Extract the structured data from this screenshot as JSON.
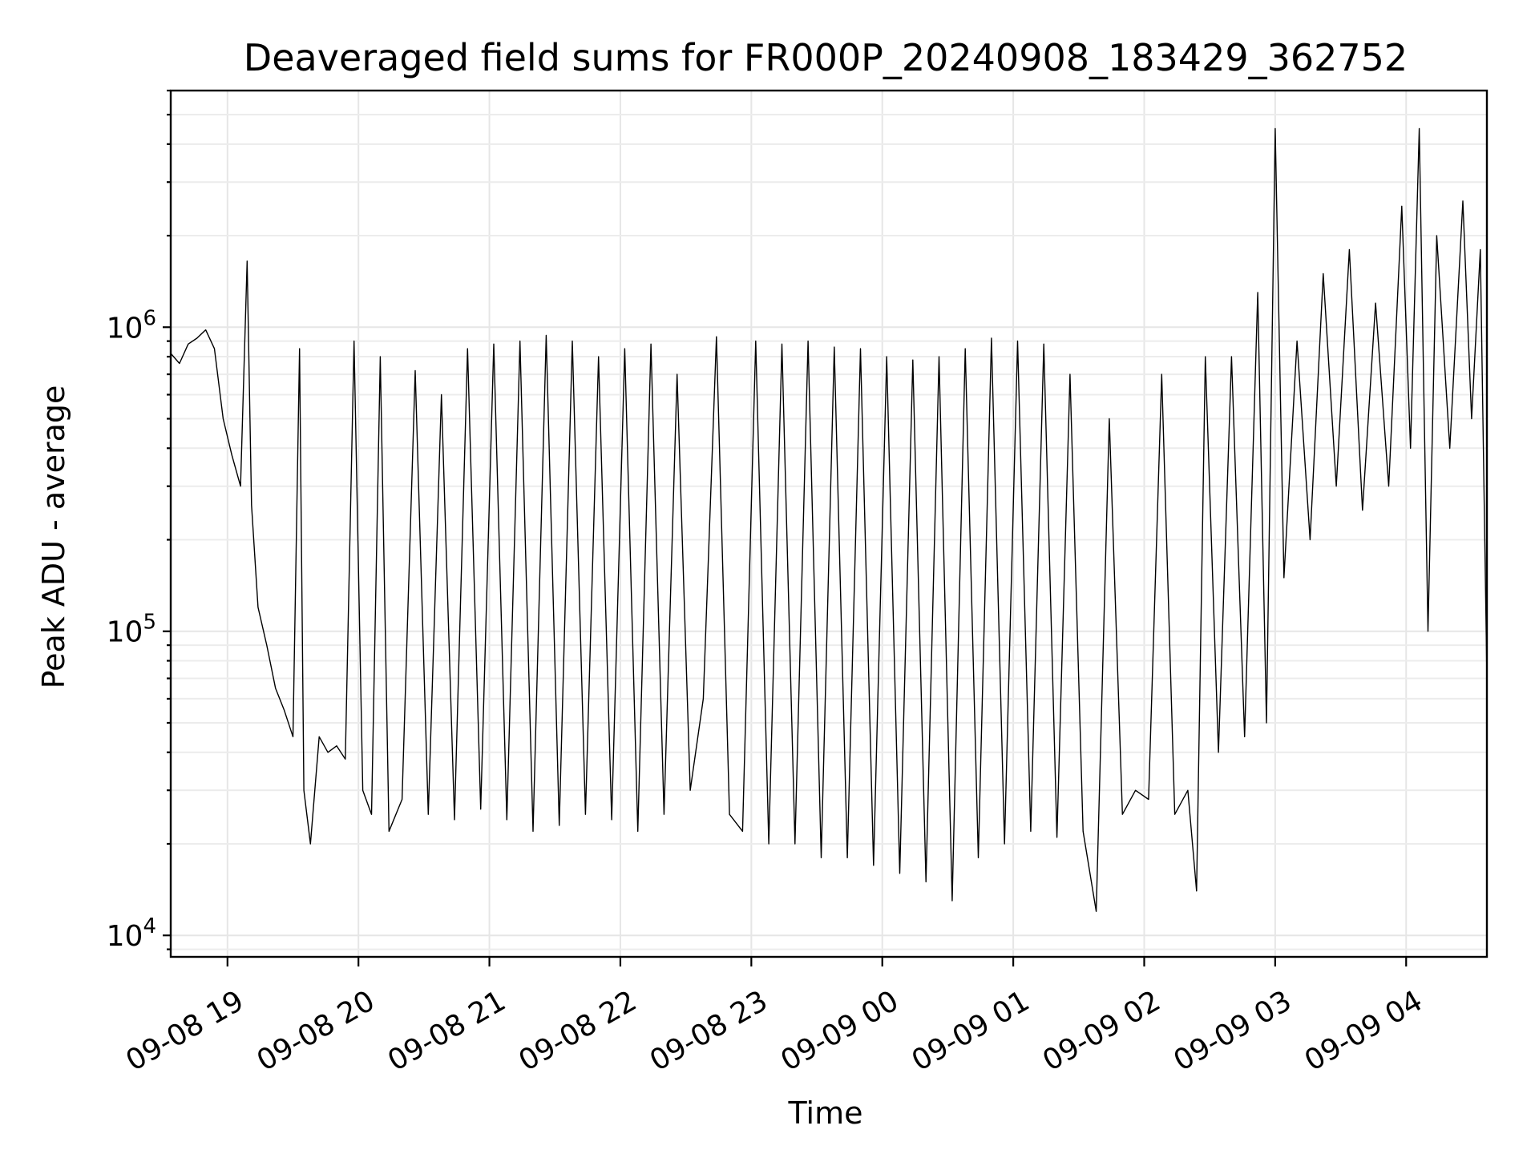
{
  "chart_data": {
    "type": "line",
    "title": "Deaveraged field sums for FR000P_20240908_183429_362752",
    "xlabel": "Time",
    "ylabel": "Peak ADU - average",
    "yscale": "log",
    "xlim": [
      "2024-09-08 18:34",
      "2024-09-09 04:37"
    ],
    "ylim": [
      8500,
      6000000
    ],
    "x_ticks": [
      {
        "t": "2024-09-08 19:00",
        "label": "09-08 19"
      },
      {
        "t": "2024-09-08 20:00",
        "label": "09-08 20"
      },
      {
        "t": "2024-09-08 21:00",
        "label": "09-08 21"
      },
      {
        "t": "2024-09-08 22:00",
        "label": "09-08 22"
      },
      {
        "t": "2024-09-08 23:00",
        "label": "09-08 23"
      },
      {
        "t": "2024-09-09 00:00",
        "label": "09-09 00"
      },
      {
        "t": "2024-09-09 01:00",
        "label": "09-09 01"
      },
      {
        "t": "2024-09-09 02:00",
        "label": "09-09 02"
      },
      {
        "t": "2024-09-09 03:00",
        "label": "09-09 03"
      },
      {
        "t": "2024-09-09 04:00",
        "label": "09-09 04"
      }
    ],
    "y_ticks": [
      {
        "value": 10000,
        "base": "10",
        "exp": "4"
      },
      {
        "value": 100000,
        "base": "10",
        "exp": "5"
      },
      {
        "value": 1000000,
        "base": "10",
        "exp": "6"
      }
    ],
    "grid": true,
    "line_color": "#000000",
    "series": [
      {
        "points": [
          [
            "2024-09-08 18:34",
            820000
          ],
          [
            "2024-09-08 18:38",
            760000
          ],
          [
            "2024-09-08 18:42",
            880000
          ],
          [
            "2024-09-08 18:46",
            920000
          ],
          [
            "2024-09-08 18:50",
            980000
          ],
          [
            "2024-09-08 18:54",
            850000
          ],
          [
            "2024-09-08 18:58",
            500000
          ],
          [
            "2024-09-08 19:02",
            380000
          ],
          [
            "2024-09-08 19:06",
            300000
          ],
          [
            "2024-09-08 19:09",
            1650000
          ],
          [
            "2024-09-08 19:11",
            260000
          ],
          [
            "2024-09-08 19:14",
            120000
          ],
          [
            "2024-09-08 19:18",
            90000
          ],
          [
            "2024-09-08 19:22",
            65000
          ],
          [
            "2024-09-08 19:26",
            55000
          ],
          [
            "2024-09-08 19:30",
            45000
          ],
          [
            "2024-09-08 19:33",
            850000
          ],
          [
            "2024-09-08 19:35",
            30000
          ],
          [
            "2024-09-08 19:38",
            20000
          ],
          [
            "2024-09-08 19:42",
            45000
          ],
          [
            "2024-09-08 19:46",
            40000
          ],
          [
            "2024-09-08 19:50",
            42000
          ],
          [
            "2024-09-08 19:54",
            38000
          ],
          [
            "2024-09-08 19:58",
            900000
          ],
          [
            "2024-09-08 20:02",
            30000
          ],
          [
            "2024-09-08 20:06",
            25000
          ],
          [
            "2024-09-08 20:10",
            800000
          ],
          [
            "2024-09-08 20:14",
            22000
          ],
          [
            "2024-09-08 20:20",
            28000
          ],
          [
            "2024-09-08 20:26",
            720000
          ],
          [
            "2024-09-08 20:32",
            25000
          ],
          [
            "2024-09-08 20:38",
            600000
          ],
          [
            "2024-09-08 20:44",
            24000
          ],
          [
            "2024-09-08 20:50",
            850000
          ],
          [
            "2024-09-08 20:56",
            26000
          ],
          [
            "2024-09-08 21:02",
            880000
          ],
          [
            "2024-09-08 21:08",
            24000
          ],
          [
            "2024-09-08 21:14",
            900000
          ],
          [
            "2024-09-08 21:20",
            22000
          ],
          [
            "2024-09-08 21:26",
            940000
          ],
          [
            "2024-09-08 21:32",
            23000
          ],
          [
            "2024-09-08 21:38",
            900000
          ],
          [
            "2024-09-08 21:44",
            25000
          ],
          [
            "2024-09-08 21:50",
            800000
          ],
          [
            "2024-09-08 21:56",
            24000
          ],
          [
            "2024-09-08 22:02",
            850000
          ],
          [
            "2024-09-08 22:08",
            22000
          ],
          [
            "2024-09-08 22:14",
            880000
          ],
          [
            "2024-09-08 22:20",
            25000
          ],
          [
            "2024-09-08 22:26",
            700000
          ],
          [
            "2024-09-08 22:32",
            30000
          ],
          [
            "2024-09-08 22:38",
            60000
          ],
          [
            "2024-09-08 22:44",
            930000
          ],
          [
            "2024-09-08 22:50",
            25000
          ],
          [
            "2024-09-08 22:56",
            22000
          ],
          [
            "2024-09-08 23:02",
            900000
          ],
          [
            "2024-09-08 23:08",
            20000
          ],
          [
            "2024-09-08 23:14",
            880000
          ],
          [
            "2024-09-08 23:20",
            20000
          ],
          [
            "2024-09-08 23:26",
            900000
          ],
          [
            "2024-09-08 23:32",
            18000
          ],
          [
            "2024-09-08 23:38",
            860000
          ],
          [
            "2024-09-08 23:44",
            18000
          ],
          [
            "2024-09-08 23:50",
            850000
          ],
          [
            "2024-09-08 23:56",
            17000
          ],
          [
            "2024-09-09 00:02",
            800000
          ],
          [
            "2024-09-09 00:08",
            16000
          ],
          [
            "2024-09-09 00:14",
            780000
          ],
          [
            "2024-09-09 00:20",
            15000
          ],
          [
            "2024-09-09 00:26",
            800000
          ],
          [
            "2024-09-09 00:32",
            13000
          ],
          [
            "2024-09-09 00:38",
            850000
          ],
          [
            "2024-09-09 00:44",
            18000
          ],
          [
            "2024-09-09 00:50",
            920000
          ],
          [
            "2024-09-09 00:56",
            20000
          ],
          [
            "2024-09-09 01:02",
            900000
          ],
          [
            "2024-09-09 01:08",
            22000
          ],
          [
            "2024-09-09 01:14",
            880000
          ],
          [
            "2024-09-09 01:20",
            21000
          ],
          [
            "2024-09-09 01:26",
            700000
          ],
          [
            "2024-09-09 01:32",
            22000
          ],
          [
            "2024-09-09 01:38",
            12000
          ],
          [
            "2024-09-09 01:44",
            500000
          ],
          [
            "2024-09-09 01:50",
            25000
          ],
          [
            "2024-09-09 01:56",
            30000
          ],
          [
            "2024-09-09 02:02",
            28000
          ],
          [
            "2024-09-09 02:08",
            700000
          ],
          [
            "2024-09-09 02:14",
            25000
          ],
          [
            "2024-09-09 02:20",
            30000
          ],
          [
            "2024-09-09 02:24",
            14000
          ],
          [
            "2024-09-09 02:28",
            800000
          ],
          [
            "2024-09-09 02:34",
            40000
          ],
          [
            "2024-09-09 02:40",
            800000
          ],
          [
            "2024-09-09 02:46",
            45000
          ],
          [
            "2024-09-09 02:52",
            1300000
          ],
          [
            "2024-09-09 02:56",
            50000
          ],
          [
            "2024-09-09 03:00",
            4500000
          ],
          [
            "2024-09-09 03:04",
            150000
          ],
          [
            "2024-09-09 03:10",
            900000
          ],
          [
            "2024-09-09 03:16",
            200000
          ],
          [
            "2024-09-09 03:22",
            1500000
          ],
          [
            "2024-09-09 03:28",
            300000
          ],
          [
            "2024-09-09 03:34",
            1800000
          ],
          [
            "2024-09-09 03:40",
            250000
          ],
          [
            "2024-09-09 03:46",
            1200000
          ],
          [
            "2024-09-09 03:52",
            300000
          ],
          [
            "2024-09-09 03:58",
            2500000
          ],
          [
            "2024-09-09 04:02",
            400000
          ],
          [
            "2024-09-09 04:06",
            4500000
          ],
          [
            "2024-09-09 04:10",
            100000
          ],
          [
            "2024-09-09 04:14",
            2000000
          ],
          [
            "2024-09-09 04:20",
            400000
          ],
          [
            "2024-09-09 04:26",
            2600000
          ],
          [
            "2024-09-09 04:30",
            500000
          ],
          [
            "2024-09-09 04:34",
            1800000
          ],
          [
            "2024-09-09 04:37",
            70000
          ]
        ]
      }
    ]
  }
}
